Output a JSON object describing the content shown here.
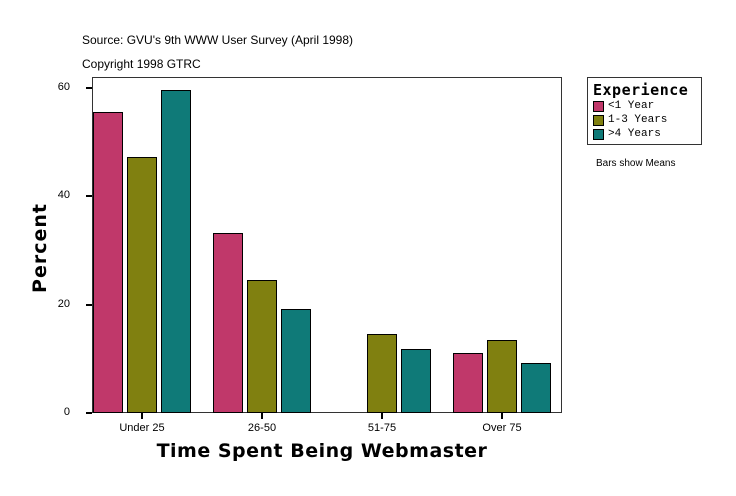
{
  "header": {
    "source": "Source: GVU's 9th WWW User Survey (April 1998)",
    "copyright": "Copyright 1998 GTRC"
  },
  "legend": {
    "title": "Experience",
    "items": [
      {
        "label": "<1 Year",
        "color": "#C0386A"
      },
      {
        "label": "1-3 Years",
        "color": "#808010"
      },
      {
        "label": ">4 Years",
        "color": "#0F7A78"
      }
    ]
  },
  "note": "Bars show Means",
  "chart_data": {
    "type": "bar",
    "title": "",
    "xlabel": "Time Spent Being Webmaster",
    "ylabel": "Percent",
    "categories": [
      "Under 25",
      "26-50",
      "51-75",
      "Over 75"
    ],
    "series": [
      {
        "name": "<1 Year",
        "color": "#C0386A",
        "values": [
          55.6,
          33.2,
          0,
          11.1
        ]
      },
      {
        "name": "1-3 Years",
        "color": "#808010",
        "values": [
          47.3,
          24.6,
          14.6,
          13.5
        ]
      },
      {
        "name": ">4 Years",
        "color": "#0F7A78",
        "values": [
          59.6,
          19.2,
          11.8,
          9.2
        ]
      }
    ],
    "yticks": [
      0,
      20,
      40,
      60
    ],
    "ylim": [
      0,
      62
    ],
    "grid": false,
    "legend_position": "right-top"
  }
}
